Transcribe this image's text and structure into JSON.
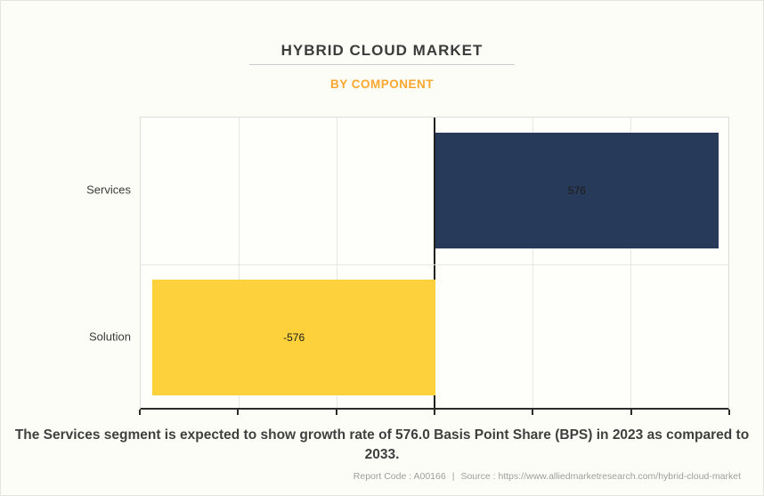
{
  "header": {
    "title": "HYBRID CLOUD MARKET",
    "subtitle": "BY COMPONENT",
    "title_color": "#3B3B3B",
    "subtitle_color": "#FAA72F"
  },
  "chart_data": {
    "type": "bar",
    "orientation": "horizontal",
    "categories": [
      "Services",
      "Solution"
    ],
    "values": [
      576,
      -576
    ],
    "value_labels": [
      "576",
      "-576"
    ],
    "bar_colors": [
      "#283A59",
      "#FDD13C"
    ],
    "xlim": [
      -600,
      600
    ],
    "x_tick_step": 200,
    "x_tick_labels_visible": false,
    "grid": true,
    "zero_line": true,
    "legend": "none"
  },
  "caption": {
    "text": "The Services segment is expected to show growth rate of 576.0 Basis Point Share (BPS) in 2023 as compared to 2033."
  },
  "footer": {
    "report_code": "Report Code : A00166",
    "separator": "|",
    "source": "Source : https://www.alliedmarketresearch.com/hybrid-cloud-market"
  }
}
